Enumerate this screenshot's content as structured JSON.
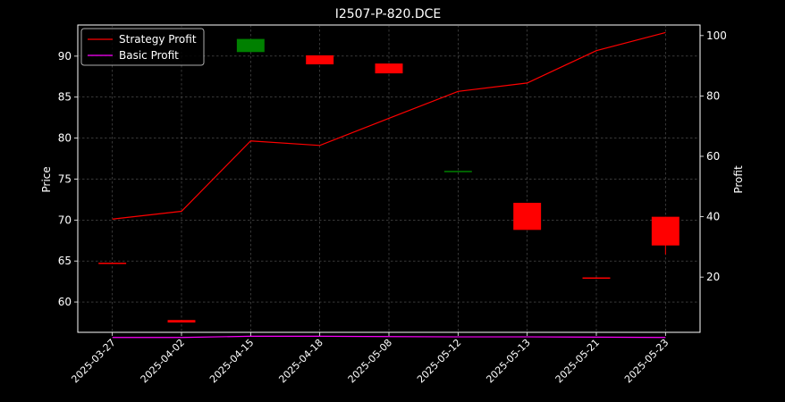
{
  "chart_data": {
    "type": "candlestick",
    "title": "I2507-P-820.DCE",
    "xlabel": "",
    "ylabel": "Price",
    "y2label": "Profit",
    "categories": [
      "2025-03-27",
      "2025-04-02",
      "2025-04-15",
      "2025-04-18",
      "2025-05-08",
      "2025-05-12",
      "2025-05-13",
      "2025-05-21",
      "2025-05-23"
    ],
    "ylim": [
      56.3,
      93.8
    ],
    "yticks": [
      60,
      65,
      70,
      75,
      80,
      85,
      90
    ],
    "y2lim": [
      1.7,
      103.5
    ],
    "y2ticks": [
      20,
      40,
      60,
      80,
      100
    ],
    "grid": true,
    "legend_position": "top-left",
    "candles": [
      {
        "date": "2025-03-27",
        "open": 64.8,
        "high": 64.8,
        "low": 64.8,
        "close": 64.8,
        "color": "#ff0000"
      },
      {
        "date": "2025-04-02",
        "open": 57.8,
        "high": 57.8,
        "low": 57.5,
        "close": 57.5,
        "color": "#ff0000"
      },
      {
        "date": "2025-04-15",
        "open": 90.5,
        "high": 92.1,
        "low": 90.5,
        "close": 92.1,
        "color": "#008000"
      },
      {
        "date": "2025-04-18",
        "open": 90.1,
        "high": 90.1,
        "low": 89.0,
        "close": 89.0,
        "color": "#ff0000"
      },
      {
        "date": "2025-05-08",
        "open": 89.1,
        "high": 89.1,
        "low": 87.9,
        "close": 87.9,
        "color": "#ff0000"
      },
      {
        "date": "2025-05-12",
        "open": 76.0,
        "high": 76.0,
        "low": 76.0,
        "close": 76.0,
        "color": "#008000"
      },
      {
        "date": "2025-05-13",
        "open": 72.1,
        "high": 72.1,
        "low": 68.8,
        "close": 68.8,
        "color": "#ff0000"
      },
      {
        "date": "2025-05-21",
        "open": 63.0,
        "high": 63.0,
        "low": 63.0,
        "close": 63.0,
        "color": "#ff0000"
      },
      {
        "date": "2025-05-23",
        "open": 70.4,
        "high": 70.4,
        "low": 65.8,
        "close": 66.9,
        "color": "#ff0000"
      }
    ],
    "series": [
      {
        "name": "Strategy Profit",
        "axis": "right",
        "color": "#ff0000",
        "values": [
          39.2,
          41.8,
          65.1,
          63.6,
          72.6,
          81.5,
          84.3,
          95.0,
          101.0
        ]
      },
      {
        "name": "Basic Profit",
        "axis": "right",
        "color": "#ff00ff",
        "values": [
          0.0,
          0.0,
          0.4,
          0.4,
          0.3,
          0.2,
          0.2,
          0.1,
          0.0
        ]
      }
    ],
    "colors": {
      "background": "#000000",
      "foreground": "#ffffff",
      "grid": "#808080"
    }
  }
}
